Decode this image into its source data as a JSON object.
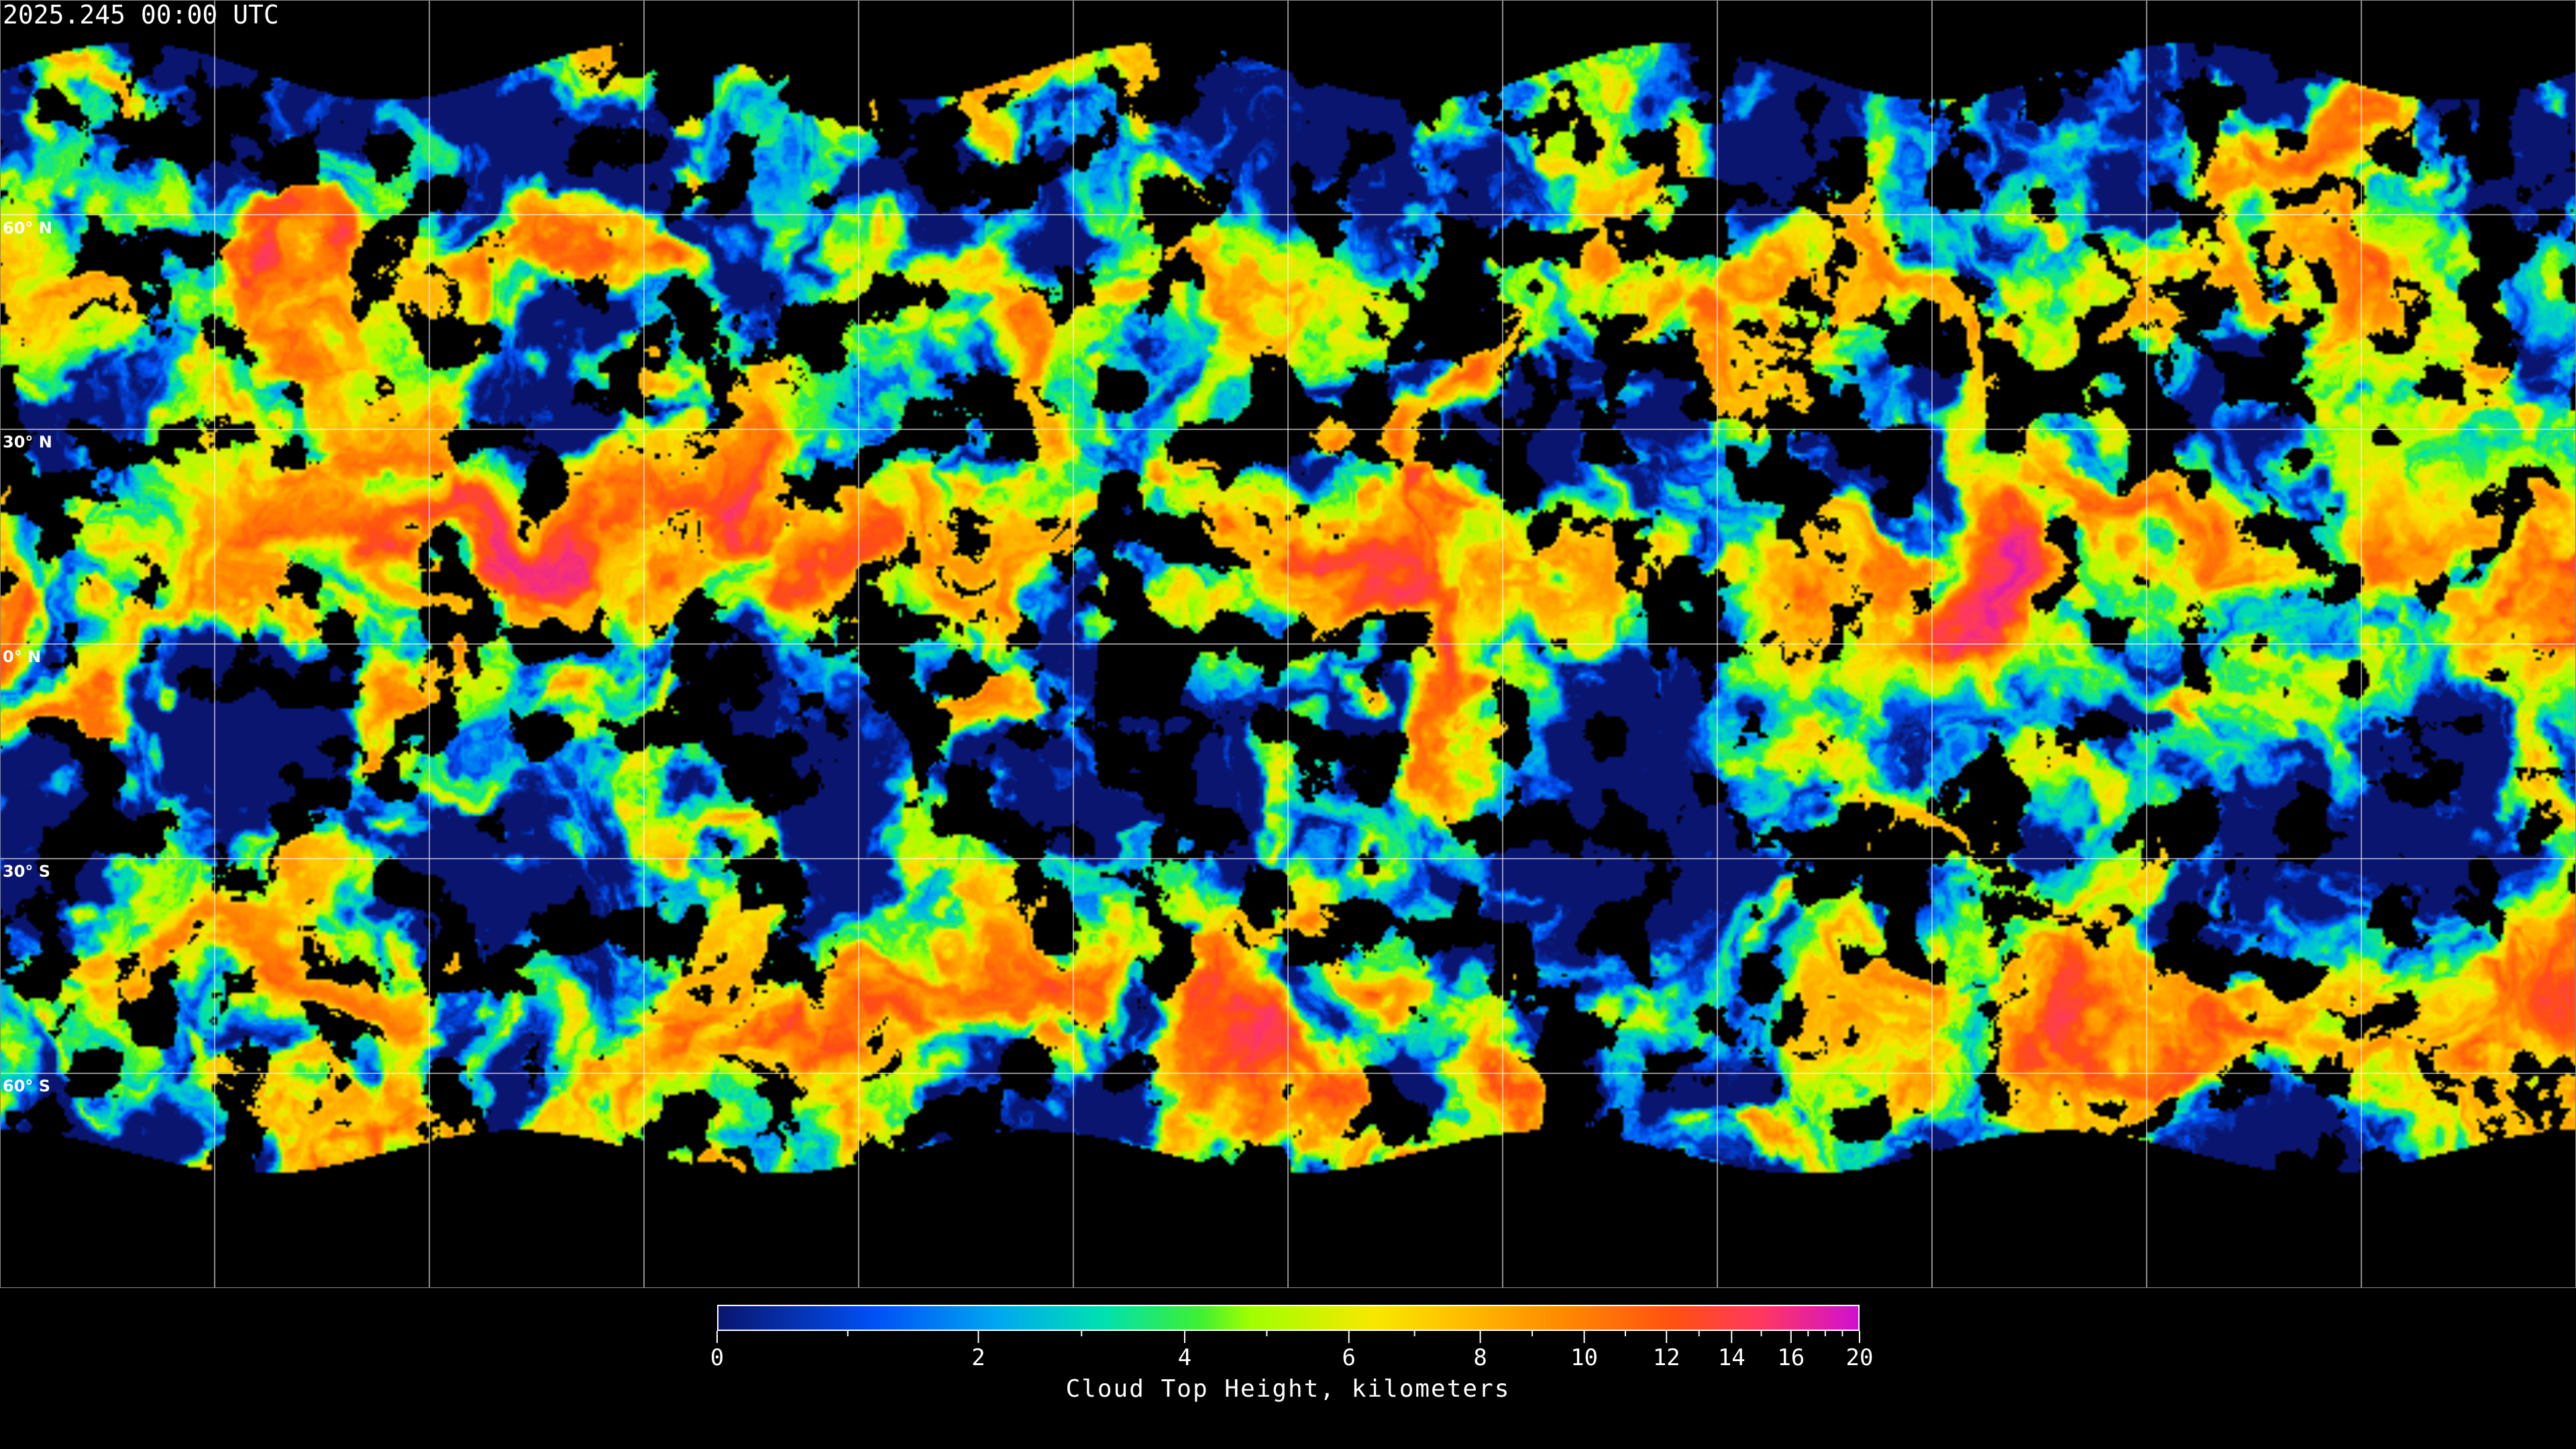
{
  "timestamp": "2025.245 00:00 UTC",
  "map": {
    "projection": "equirectangular",
    "gridline_spacing_deg": 30,
    "latitude_labels": [
      "60° N",
      "30° N",
      "0° N",
      "30° S",
      "60° S"
    ],
    "latitude_values": [
      60,
      30,
      0,
      -30,
      -60
    ],
    "background_color": "#000000",
    "gridline_color": "#ffffff"
  },
  "colorbar": {
    "title": "Cloud Top Height, kilometers",
    "min": 0,
    "max": 20,
    "tick_labels": [
      "0",
      "2",
      "4",
      "6",
      "8",
      "10",
      "12",
      "14",
      "16",
      "20"
    ],
    "tick_values": [
      0,
      2,
      4,
      6,
      8,
      10,
      12,
      14,
      16,
      20
    ],
    "minor_tick_values": [
      1,
      3,
      5,
      7,
      9,
      11,
      13,
      15,
      17,
      18,
      19
    ],
    "colormap": [
      {
        "value": 0,
        "color": "#0a1570"
      },
      {
        "value": 1.2,
        "color": "#0050f5"
      },
      {
        "value": 2.2,
        "color": "#00a8f0"
      },
      {
        "value": 3.2,
        "color": "#00e0b0"
      },
      {
        "value": 4.2,
        "color": "#40f030"
      },
      {
        "value": 4.8,
        "color": "#a0ff00"
      },
      {
        "value": 6.4,
        "color": "#f8e800"
      },
      {
        "value": 7.5,
        "color": "#ffc400"
      },
      {
        "value": 9.5,
        "color": "#ff8c00"
      },
      {
        "value": 12.3,
        "color": "#ff5010"
      },
      {
        "value": 15,
        "color": "#ff3860"
      },
      {
        "value": 20,
        "color": "#d010d0"
      }
    ]
  }
}
